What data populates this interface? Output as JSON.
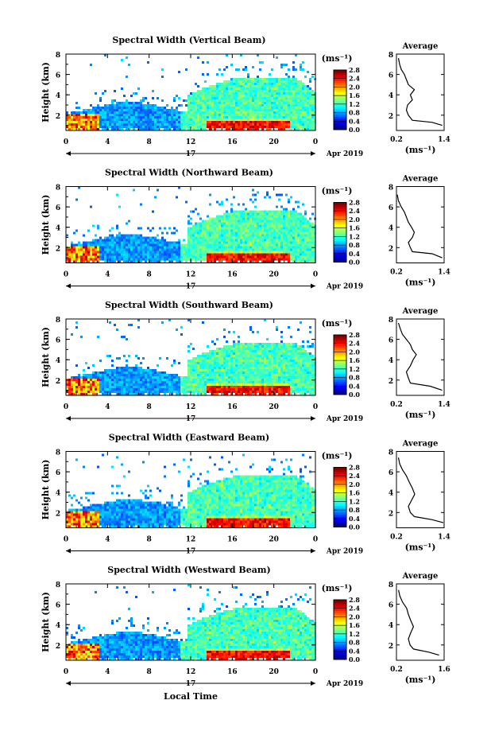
{
  "figure": {
    "date_label": "Apr 2019",
    "day_label": "17",
    "xlabel_bottom": "Local Time"
  },
  "chart_data": [
    {
      "type": "heatmap",
      "title": "Spectral Width (Vertical Beam)",
      "xlabel": "Local Time",
      "ylabel": "Height (km)",
      "x_ticks": [
        "0",
        "4",
        "8",
        "12",
        "16",
        "20",
        "0"
      ],
      "x_range_hours": [
        0,
        24
      ],
      "y_ticks": [
        "2",
        "4",
        "6",
        "8"
      ],
      "y_range_km": [
        0.5,
        8
      ],
      "colorbar": {
        "label": "(ms⁻¹)",
        "ticks": [
          "0.0",
          "0.4",
          "0.8",
          "1.2",
          "1.6",
          "2.0",
          "2.4",
          "2.8"
        ],
        "range": [
          0,
          2.8
        ]
      },
      "average_panel": {
        "title": "Average",
        "xlabel": "(ms⁻¹)",
        "x_ticks": [
          "0.2",
          "1.4"
        ],
        "x_range": [
          0.2,
          1.4
        ],
        "y_ticks": [
          "2",
          "4",
          "6",
          "8"
        ],
        "profile": [
          [
            1.35,
            1.0
          ],
          [
            1.1,
            1.3
          ],
          [
            0.6,
            1.5
          ],
          [
            0.5,
            2.0
          ],
          [
            0.45,
            2.5
          ],
          [
            0.48,
            3.0
          ],
          [
            0.6,
            3.5
          ],
          [
            0.55,
            4.0
          ],
          [
            0.65,
            4.5
          ],
          [
            0.5,
            5.0
          ],
          [
            0.45,
            5.5
          ],
          [
            0.4,
            6.0
          ],
          [
            0.32,
            6.5
          ],
          [
            0.28,
            7.0
          ],
          [
            0.25,
            7.6
          ]
        ]
      }
    },
    {
      "type": "heatmap",
      "title": "Spectral Width (Northward Beam)",
      "xlabel": "Local Time",
      "ylabel": "Height (km)",
      "x_ticks": [
        "0",
        "4",
        "8",
        "12",
        "16",
        "20",
        "0"
      ],
      "x_range_hours": [
        0,
        24
      ],
      "y_ticks": [
        "2",
        "4",
        "6",
        "8"
      ],
      "y_range_km": [
        0.5,
        8
      ],
      "colorbar": {
        "label": "(ms⁻¹)",
        "ticks": [
          "0.0",
          "0.4",
          "0.8",
          "1.2",
          "1.6",
          "2.0",
          "2.4",
          "2.8"
        ],
        "range": [
          0,
          2.8
        ]
      },
      "average_panel": {
        "title": "Average",
        "xlabel": "(ms⁻¹)",
        "x_ticks": [
          "0.2",
          "1.4"
        ],
        "x_range": [
          0.2,
          1.4
        ],
        "y_ticks": [
          "2",
          "4",
          "6",
          "8"
        ],
        "profile": [
          [
            1.35,
            1.0
          ],
          [
            1.1,
            1.4
          ],
          [
            0.6,
            1.6
          ],
          [
            0.55,
            2.0
          ],
          [
            0.5,
            2.5
          ],
          [
            0.6,
            3.0
          ],
          [
            0.65,
            3.5
          ],
          [
            0.58,
            4.0
          ],
          [
            0.5,
            4.5
          ],
          [
            0.45,
            5.0
          ],
          [
            0.4,
            5.5
          ],
          [
            0.32,
            6.0
          ],
          [
            0.25,
            6.6
          ],
          [
            0.22,
            7.2
          ]
        ]
      }
    },
    {
      "type": "heatmap",
      "title": "Spectral Width (Southward Beam)",
      "xlabel": "Local Time",
      "ylabel": "Height (km)",
      "x_ticks": [
        "0",
        "4",
        "8",
        "12",
        "16",
        "20",
        "0"
      ],
      "x_range_hours": [
        0,
        24
      ],
      "y_ticks": [
        "2",
        "4",
        "6",
        "8"
      ],
      "y_range_km": [
        0.5,
        8
      ],
      "colorbar": {
        "label": "(ms⁻¹)",
        "ticks": [
          "0.0",
          "0.4",
          "0.8",
          "1.2",
          "1.6",
          "2.0",
          "2.4",
          "2.8"
        ],
        "range": [
          0,
          2.8
        ]
      },
      "average_panel": {
        "title": "Average",
        "xlabel": "(ms⁻¹)",
        "x_ticks": [
          "0.2",
          "1.4"
        ],
        "x_range": [
          0.2,
          1.4
        ],
        "y_ticks": [
          "2",
          "4",
          "6",
          "8"
        ],
        "profile": [
          [
            1.35,
            1.0
          ],
          [
            1.05,
            1.4
          ],
          [
            0.55,
            1.7
          ],
          [
            0.5,
            2.2
          ],
          [
            0.45,
            2.8
          ],
          [
            0.55,
            3.4
          ],
          [
            0.62,
            4.0
          ],
          [
            0.7,
            4.5
          ],
          [
            0.6,
            5.0
          ],
          [
            0.55,
            5.5
          ],
          [
            0.45,
            6.0
          ],
          [
            0.35,
            6.5
          ],
          [
            0.3,
            7.0
          ],
          [
            0.25,
            7.6
          ]
        ]
      }
    },
    {
      "type": "heatmap",
      "title": "Spectral Width (Eastward Beam)",
      "xlabel": "Local Time",
      "ylabel": "Height (km)",
      "x_ticks": [
        "0",
        "4",
        "8",
        "12",
        "16",
        "20",
        "0"
      ],
      "x_range_hours": [
        0,
        24
      ],
      "y_ticks": [
        "2",
        "4",
        "6",
        "8"
      ],
      "y_range_km": [
        0.5,
        8
      ],
      "colorbar": {
        "label": "(ms⁻¹)",
        "ticks": [
          "0.0",
          "0.4",
          "0.8",
          "1.2",
          "1.6",
          "2.0",
          "2.4",
          "2.8"
        ],
        "range": [
          0,
          2.8
        ]
      },
      "average_panel": {
        "title": "Average",
        "xlabel": "(ms⁻¹)",
        "x_ticks": [
          "0.2",
          "1.4"
        ],
        "x_range": [
          0.2,
          1.4
        ],
        "y_ticks": [
          "2",
          "4",
          "6",
          "8"
        ],
        "profile": [
          [
            1.38,
            1.0
          ],
          [
            1.1,
            1.3
          ],
          [
            0.65,
            1.6
          ],
          [
            0.55,
            2.0
          ],
          [
            0.5,
            2.6
          ],
          [
            0.58,
            3.2
          ],
          [
            0.66,
            3.8
          ],
          [
            0.6,
            4.4
          ],
          [
            0.52,
            5.0
          ],
          [
            0.45,
            5.6
          ],
          [
            0.35,
            6.2
          ],
          [
            0.28,
            6.8
          ],
          [
            0.25,
            7.4
          ]
        ]
      }
    },
    {
      "type": "heatmap",
      "title": "Spectral Width (Westward Beam)",
      "xlabel": "Local Time",
      "ylabel": "Height (km)",
      "x_ticks": [
        "0",
        "4",
        "8",
        "12",
        "16",
        "20",
        "0"
      ],
      "x_range_hours": [
        0,
        24
      ],
      "y_ticks": [
        "2",
        "4",
        "6",
        "8"
      ],
      "y_range_km": [
        0.5,
        8
      ],
      "colorbar": {
        "label": "(ms⁻¹)",
        "ticks": [
          "0.0",
          "0.4",
          "0.8",
          "1.2",
          "1.6",
          "2.0",
          "2.4",
          "2.8"
        ],
        "range": [
          0,
          2.8
        ]
      },
      "average_panel": {
        "title": "Average",
        "xlabel": "(ms⁻¹)",
        "x_ticks": [
          "0.2",
          "1.6"
        ],
        "x_range": [
          0.2,
          1.6
        ],
        "y_ticks": [
          "2",
          "4",
          "6",
          "8"
        ],
        "profile": [
          [
            1.45,
            1.0
          ],
          [
            1.15,
            1.3
          ],
          [
            0.7,
            1.6
          ],
          [
            0.6,
            2.0
          ],
          [
            0.55,
            2.6
          ],
          [
            0.62,
            3.2
          ],
          [
            0.7,
            3.8
          ],
          [
            0.62,
            4.4
          ],
          [
            0.55,
            5.0
          ],
          [
            0.5,
            5.6
          ],
          [
            0.38,
            6.2
          ],
          [
            0.3,
            6.8
          ],
          [
            0.26,
            7.4
          ]
        ]
      }
    }
  ]
}
